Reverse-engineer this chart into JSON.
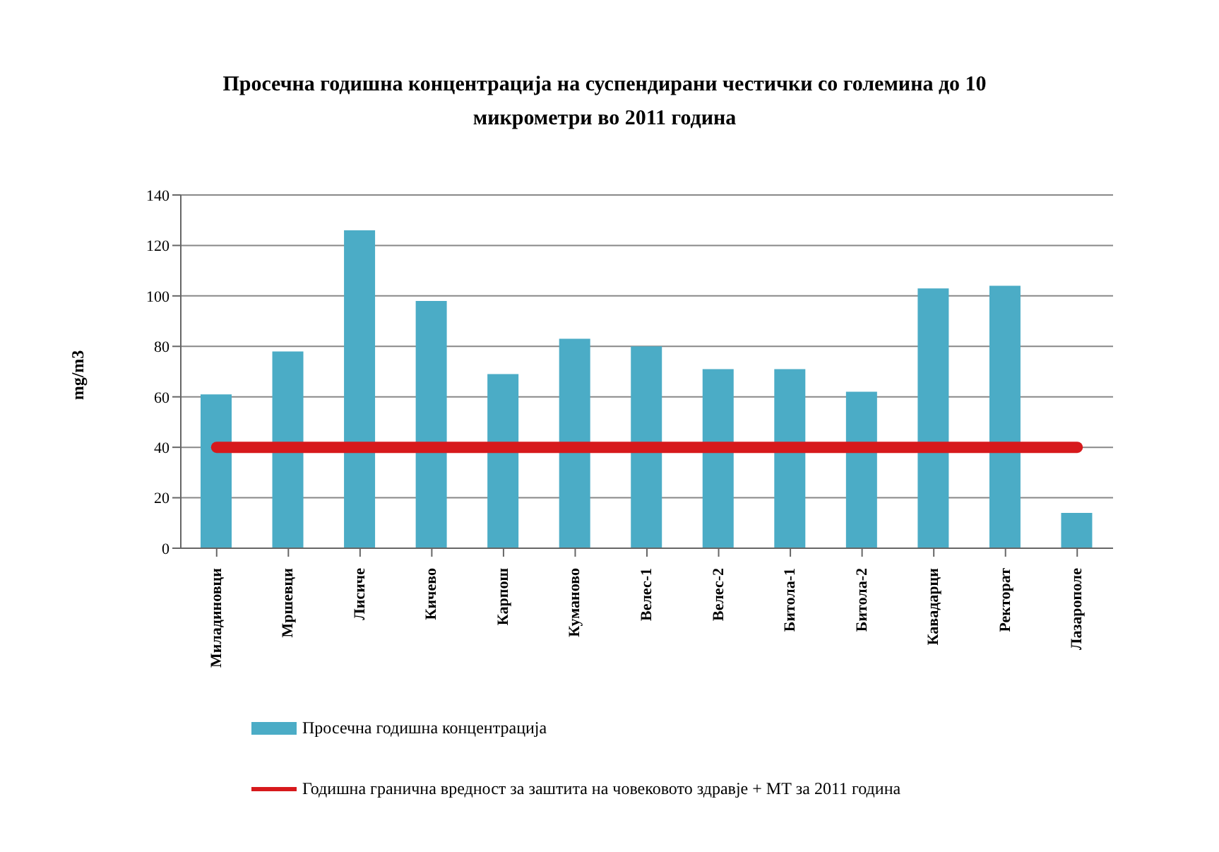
{
  "chart_data": {
    "type": "bar",
    "title": "Просечна годишна концентрација на суспендирани честички со големина до 10 микрометри во 2011 година",
    "ylabel": "mg/m3",
    "categories": [
      "Миладиновци",
      "Мршевци",
      "Лисиче",
      "Кичево",
      "Карпош",
      "Куманово",
      "Велес-1",
      "Велес-2",
      "Битола-1",
      "Битола-2",
      "Кавадарци",
      "Ректорат",
      "Лазарополе"
    ],
    "series": [
      {
        "name": "Просечна годишна концентрација",
        "color": "#4bacc6",
        "values": [
          61,
          78,
          126,
          98,
          69,
          83,
          80,
          71,
          71,
          62,
          103,
          104,
          14
        ]
      },
      {
        "name": "Годишна гранична вредност за заштита на човековото здравје + МТ за 2011 година",
        "type": "line",
        "color": "#d7191c",
        "values": [
          40,
          40,
          40,
          40,
          40,
          40,
          40,
          40,
          40,
          40,
          40,
          40,
          40
        ]
      }
    ],
    "ylim": [
      0,
      140
    ],
    "yticks": [
      0,
      20,
      40,
      60,
      80,
      100,
      120,
      140
    ],
    "grid": "y",
    "legend": "bottom"
  }
}
